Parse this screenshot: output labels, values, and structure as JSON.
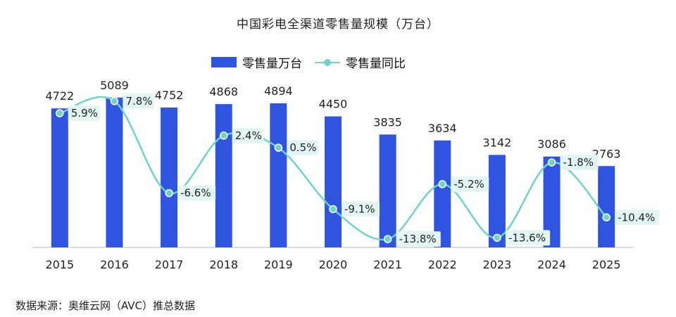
{
  "chart_data": {
    "type": "bar",
    "title": "中国彩电全渠道零售量规模（万台）",
    "categories": [
      "2015",
      "2016",
      "2017",
      "2018",
      "2019",
      "2020",
      "2021",
      "2022",
      "2023",
      "2024",
      "2025"
    ],
    "series": [
      {
        "name": "零售量万台",
        "type": "bar",
        "values": [
          4722,
          5089,
          4752,
          4868,
          4894,
          4450,
          3835,
          3634,
          3142,
          3086,
          2763
        ],
        "labels": [
          "4722",
          "5089",
          "4752",
          "4868",
          "4894",
          "4450",
          "3835",
          "3634",
          "3142",
          "3086",
          "2763"
        ]
      },
      {
        "name": "零售量同比",
        "type": "line",
        "values": [
          5.9,
          7.8,
          -6.6,
          2.4,
          0.5,
          -9.1,
          -13.8,
          -5.2,
          -13.6,
          -1.8,
          -10.4
        ],
        "labels": [
          "5.9%",
          "7.8%",
          "-6.6%",
          "2.4%",
          "0.5%",
          "-9.1%",
          "-13.8%",
          "-5.2%",
          "-13.6%",
          "-1.8%",
          "-10.4%"
        ]
      }
    ],
    "colors": {
      "bar": "#2f54e0",
      "line": "#6ed3cb",
      "label_bg": "#e4f6f3",
      "axis": "#cfcfcf"
    },
    "ylim_bar": [
      0,
      5300
    ],
    "ylim_line": [
      -14,
      8
    ],
    "legend": "top-center",
    "grid": false
  },
  "source_text": "数据来源：奥维云网（AVC）推总数据"
}
